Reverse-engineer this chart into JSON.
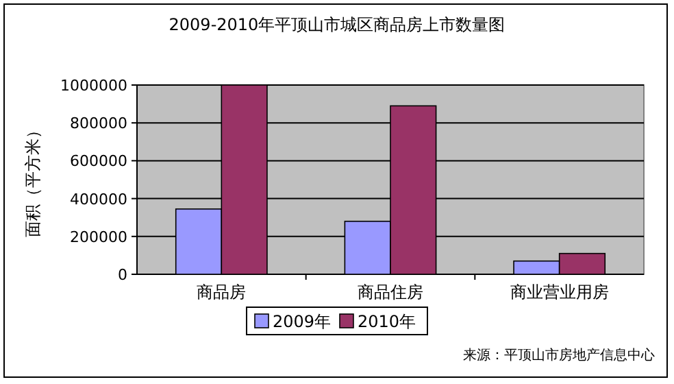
{
  "chart_data": {
    "type": "bar",
    "title": "2009-2010年平顶山市城区商品房上市数量图",
    "ylabel": "面积（平方米）",
    "categories": [
      "商品房",
      "商品住房",
      "商业营业用房"
    ],
    "series": [
      {
        "name": "2009年",
        "color": "#9999ff",
        "values": [
          345000,
          280000,
          70000
        ]
      },
      {
        "name": "2010年",
        "color": "#993366",
        "values": [
          1000000,
          890000,
          110000
        ]
      }
    ],
    "ylim": [
      0,
      1000000
    ],
    "yticks": [
      0,
      200000,
      400000,
      600000,
      800000,
      1000000
    ],
    "grid": "y",
    "legend": "bottom",
    "annotations": [
      "来源：平顶山市房地产信息中心"
    ]
  }
}
